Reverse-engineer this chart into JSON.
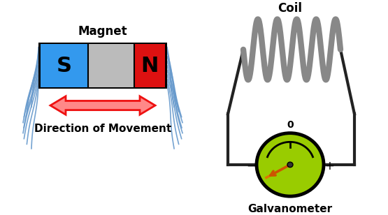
{
  "bg_color": "#ffffff",
  "title_magnet": "Magnet",
  "title_coil": "Coil",
  "title_galvanometer": "Galvanometer",
  "title_direction": "Direction of Movement",
  "s_color": "#3399ee",
  "n_color": "#dd1111",
  "mid_color": "#bbbbbb",
  "galv_color": "#99cc00",
  "wire_color": "#222222",
  "coil_color": "#888888",
  "arrow_fill": "#ff8888",
  "arrow_edge": "#ee1111",
  "field_color": "#6699cc",
  "label_color": "#000000"
}
